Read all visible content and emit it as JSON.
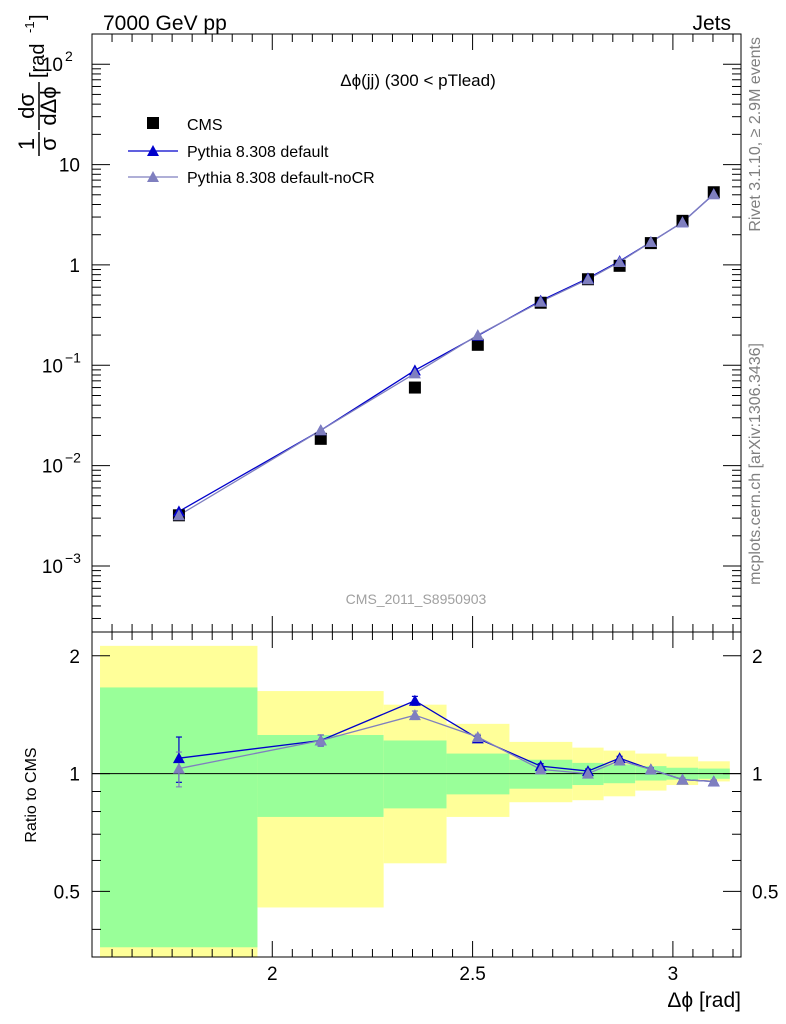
{
  "header": {
    "left_label": "7000 GeV pp",
    "right_label": "Jets"
  },
  "side_labels": {
    "rivet": "Rivet 3.1.10, ≥ 2.9M events",
    "mcplots": "mcplots.cern.ch [arXiv:1306.3436]"
  },
  "chart_data": [
    {
      "type": "scatter",
      "title": "Δϕ(jj) (300 < pTlead)",
      "watermark": "CMS_2011_S8950903",
      "ylabel": "1/σ dσ/dΔϕ [rad⁻¹]",
      "ylabel_parts": {
        "num1": "1",
        "num2": "dσ",
        "den1": "σ",
        "den2": "dΔϕ",
        "unit": "[rad",
        "unit_exp": "-1",
        "unit_close": "]"
      },
      "yscale": "log",
      "xlim": [
        1.55,
        3.17
      ],
      "ylim": [
        0.00022,
        200
      ],
      "y_ticks": [
        {
          "v": 0.001,
          "base": "10",
          "exp": "−3"
        },
        {
          "v": 0.01,
          "base": "10",
          "exp": "−2"
        },
        {
          "v": 0.1,
          "base": "10",
          "exp": "−1"
        },
        {
          "v": 1,
          "text": "1"
        },
        {
          "v": 10,
          "text": "10"
        },
        {
          "v": 100,
          "base": "10",
          "exp": "2"
        }
      ],
      "legend_position": "top-left",
      "series": [
        {
          "name": "CMS",
          "marker": "square",
          "color": "#000000",
          "x": [
            1.767,
            2.121,
            2.356,
            2.513,
            2.67,
            2.788,
            2.867,
            2.945,
            3.024,
            3.102
          ],
          "y": [
            0.0032,
            0.0185,
            0.06,
            0.16,
            0.42,
            0.72,
            0.98,
            1.65,
            2.75,
            5.3
          ]
        },
        {
          "name": "Pythia 8.308 default",
          "marker": "triangle",
          "color": "#0000cc",
          "x": [
            1.767,
            2.121,
            2.356,
            2.513,
            2.67,
            2.788,
            2.867,
            2.945,
            3.024,
            3.102
          ],
          "y": [
            0.0035,
            0.0225,
            0.089,
            0.197,
            0.44,
            0.735,
            1.09,
            1.69,
            2.66,
            5.08
          ]
        },
        {
          "name": "Pythia 8.308 default-noCR",
          "marker": "triangle",
          "color": "#7f7fbf",
          "x": [
            1.767,
            2.121,
            2.356,
            2.513,
            2.67,
            2.788,
            2.867,
            2.945,
            3.024,
            3.102
          ],
          "y": [
            0.0032,
            0.0225,
            0.083,
            0.2,
            0.43,
            0.72,
            1.07,
            1.69,
            2.66,
            5.08
          ]
        }
      ]
    },
    {
      "type": "line",
      "ylabel": "Ratio to CMS",
      "xlabel": "Δϕ [rad]",
      "xlim": [
        1.55,
        3.17
      ],
      "ylim": [
        0.34,
        2.3
      ],
      "yscale": "log",
      "reference_line": 1,
      "x_ticks": [
        2,
        2.5,
        3
      ],
      "x_tick_labels": [
        "2",
        "2.5",
        "3"
      ],
      "y_ticks": [
        0.5,
        1,
        2
      ],
      "y_tick_labels": [
        "0.5",
        "1",
        "2"
      ],
      "bands": {
        "green_color": "#99ff99",
        "yellow_color": "#ffff99",
        "bins": [
          {
            "x0": 1.57,
            "x1": 1.963,
            "green": [
              0.36,
              1.66
            ],
            "yellow": [
              0.34,
              2.12
            ]
          },
          {
            "x0": 1.963,
            "x1": 2.278,
            "green": [
              0.775,
              1.255
            ],
            "yellow": [
              0.455,
              1.625
            ]
          },
          {
            "x0": 2.278,
            "x1": 2.435,
            "green": [
              0.815,
              1.215
            ],
            "yellow": [
              0.59,
              1.5
            ]
          },
          {
            "x0": 2.435,
            "x1": 2.592,
            "green": [
              0.885,
              1.125
            ],
            "yellow": [
              0.775,
              1.34
            ]
          },
          {
            "x0": 2.592,
            "x1": 2.749,
            "green": [
              0.915,
              1.085
            ],
            "yellow": [
              0.845,
              1.205
            ]
          },
          {
            "x0": 2.749,
            "x1": 2.827,
            "green": [
              0.935,
              1.065
            ],
            "yellow": [
              0.855,
              1.165
            ]
          },
          {
            "x0": 2.827,
            "x1": 2.906,
            "green": [
              0.945,
              1.055
            ],
            "yellow": [
              0.875,
              1.145
            ]
          },
          {
            "x0": 2.906,
            "x1": 2.984,
            "green": [
              0.96,
              1.045
            ],
            "yellow": [
              0.905,
              1.125
            ]
          },
          {
            "x0": 2.984,
            "x1": 3.063,
            "green": [
              0.965,
              1.035
            ],
            "yellow": [
              0.935,
              1.105
            ]
          },
          {
            "x0": 3.063,
            "x1": 3.142,
            "green": [
              0.97,
              1.03
            ],
            "yellow": [
              0.955,
              1.075
            ]
          }
        ]
      },
      "series": [
        {
          "name": "Pythia 8.308 default",
          "color": "#0000cc",
          "x": [
            1.767,
            2.121,
            2.356,
            2.513,
            2.67,
            2.788,
            2.867,
            2.945,
            3.024,
            3.102
          ],
          "y": [
            1.095,
            1.215,
            1.535,
            1.23,
            1.045,
            1.015,
            1.095,
            1.025,
            0.965,
            0.955
          ],
          "err": [
            0.145,
            0.04,
            0.04,
            0.02,
            0.015,
            0.012,
            0.012,
            0.01,
            0.008,
            0.008
          ]
        },
        {
          "name": "Pythia 8.308 default-noCR",
          "color": "#7f7fbf",
          "x": [
            1.767,
            2.121,
            2.356,
            2.513,
            2.67,
            2.788,
            2.867,
            2.945,
            3.024,
            3.102
          ],
          "y": [
            1.03,
            1.215,
            1.41,
            1.24,
            1.025,
            1.0,
            1.08,
            1.025,
            0.965,
            0.955
          ],
          "err": [
            0.105,
            0.04,
            0.035,
            0.02,
            0.015,
            0.012,
            0.012,
            0.01,
            0.008,
            0.008
          ]
        }
      ]
    }
  ]
}
